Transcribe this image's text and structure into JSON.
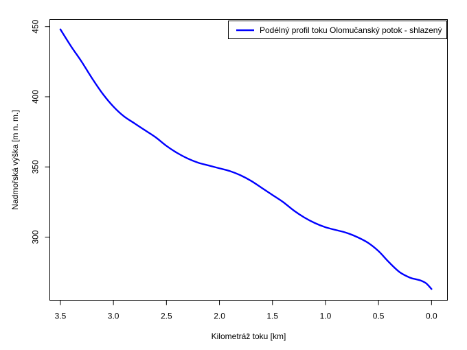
{
  "chart_data": {
    "type": "line",
    "title": "",
    "xlabel": "Kilometráž toku [km]",
    "ylabel": "Nadmořská výška [m n. m.]",
    "xlim": [
      3.6,
      -0.15
    ],
    "ylim": [
      255,
      455
    ],
    "x_reversed": true,
    "x_ticks": [
      3.5,
      3.0,
      2.5,
      2.0,
      1.5,
      1.0,
      0.5,
      0.0
    ],
    "x_tick_labels": [
      "3.5",
      "3.0",
      "2.5",
      "2.0",
      "1.5",
      "1.0",
      "0.5",
      "0.0"
    ],
    "y_ticks": [
      300,
      350,
      400,
      450
    ],
    "y_tick_labels": [
      "300",
      "350",
      "400",
      "450"
    ],
    "grid": false,
    "legend_position": "top-right",
    "series": [
      {
        "name": "Podélný profil toku Olomučanský potok - shlazený",
        "color": "#0000ff",
        "x": [
          3.5,
          3.4,
          3.3,
          3.2,
          3.1,
          3.0,
          2.9,
          2.8,
          2.7,
          2.6,
          2.5,
          2.4,
          2.3,
          2.2,
          2.1,
          2.0,
          1.9,
          1.8,
          1.7,
          1.6,
          1.5,
          1.4,
          1.3,
          1.2,
          1.1,
          1.0,
          0.9,
          0.8,
          0.7,
          0.6,
          0.5,
          0.4,
          0.3,
          0.2,
          0.15,
          0.1,
          0.05,
          0.0
        ],
        "y": [
          448,
          436,
          425,
          413,
          402,
          393,
          386,
          381,
          376,
          371,
          365,
          360,
          356,
          353,
          351,
          349,
          347,
          344,
          340,
          335,
          330,
          325,
          319,
          314,
          310,
          307,
          305,
          303,
          300,
          296,
          290,
          282,
          275,
          271,
          270,
          269,
          267,
          263
        ]
      }
    ]
  }
}
